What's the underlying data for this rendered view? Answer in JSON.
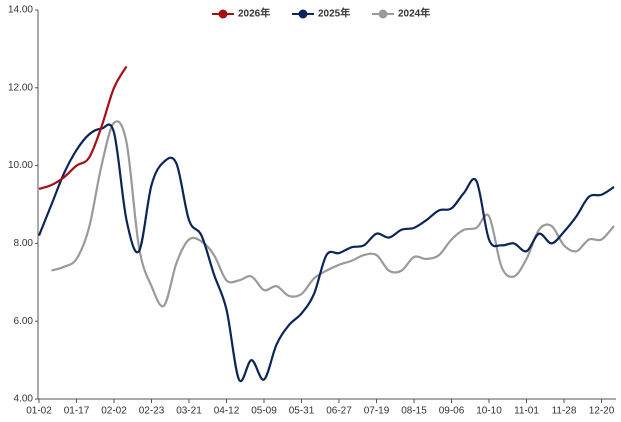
{
  "chart_data": {
    "type": "line",
    "categories": [
      "01-02",
      null,
      null,
      "01-17",
      null,
      null,
      "02-02",
      null,
      null,
      "02-23",
      null,
      null,
      "03-21",
      null,
      null,
      "04-12",
      null,
      null,
      "05-09",
      null,
      null,
      "05-31",
      null,
      null,
      "06-27",
      null,
      null,
      "07-19",
      null,
      null,
      "08-15",
      null,
      null,
      "09-06",
      null,
      null,
      "10-10",
      null,
      null,
      "11-01",
      null,
      null,
      "11-28",
      null,
      null,
      "12-20",
      null
    ],
    "series": [
      {
        "name": "2026年",
        "color": "#a50f15",
        "values": [
          9.4,
          9.5,
          9.7,
          10.0,
          10.2,
          11.0,
          12.0,
          12.55,
          null,
          null,
          null,
          null,
          null,
          null,
          null,
          null,
          null,
          null,
          null,
          null,
          null,
          null,
          null,
          null,
          null,
          null,
          null,
          null,
          null,
          null,
          null,
          null,
          null,
          null,
          null,
          null,
          null,
          null,
          null,
          null,
          null,
          null,
          null,
          null,
          null,
          null,
          null
        ]
      },
      {
        "name": "2025年",
        "color": "#0b2559",
        "values": [
          8.2,
          9.0,
          9.8,
          10.4,
          10.8,
          10.95,
          10.85,
          8.6,
          7.8,
          9.5,
          10.1,
          10.05,
          8.6,
          8.2,
          7.2,
          6.3,
          4.5,
          5.0,
          4.5,
          5.4,
          5.9,
          6.2,
          6.7,
          7.7,
          7.75,
          7.9,
          7.95,
          8.25,
          8.15,
          8.35,
          8.4,
          8.6,
          8.85,
          8.9,
          9.3,
          9.6,
          8.1,
          7.95,
          8.0,
          7.8,
          8.25,
          8.0,
          8.3,
          8.7,
          9.2,
          9.25,
          9.45
        ]
      },
      {
        "name": "2024年",
        "color": "#9a9a9a",
        "values": [
          null,
          7.3,
          7.4,
          7.6,
          8.4,
          10.0,
          11.1,
          10.6,
          7.9,
          6.9,
          6.4,
          7.5,
          8.1,
          8.05,
          7.7,
          7.05,
          7.05,
          7.15,
          6.8,
          6.9,
          6.65,
          6.7,
          7.1,
          7.3,
          7.45,
          7.55,
          7.7,
          7.7,
          7.3,
          7.3,
          7.65,
          7.6,
          7.7,
          8.1,
          8.35,
          8.4,
          8.7,
          7.4,
          7.15,
          7.6,
          8.35,
          8.45,
          7.95,
          7.8,
          8.1,
          8.1,
          8.45
        ]
      }
    ],
    "ylim": [
      4,
      14
    ],
    "yticks": [
      {
        "value": 4,
        "label": "4.00"
      },
      {
        "value": 6,
        "label": "6.00"
      },
      {
        "value": 8,
        "label": "8.00"
      },
      {
        "value": 10,
        "label": "10.00"
      },
      {
        "value": 12,
        "label": "12.00"
      },
      {
        "value": 14,
        "label": "14.00"
      }
    ],
    "grid": false,
    "legend": "top"
  }
}
